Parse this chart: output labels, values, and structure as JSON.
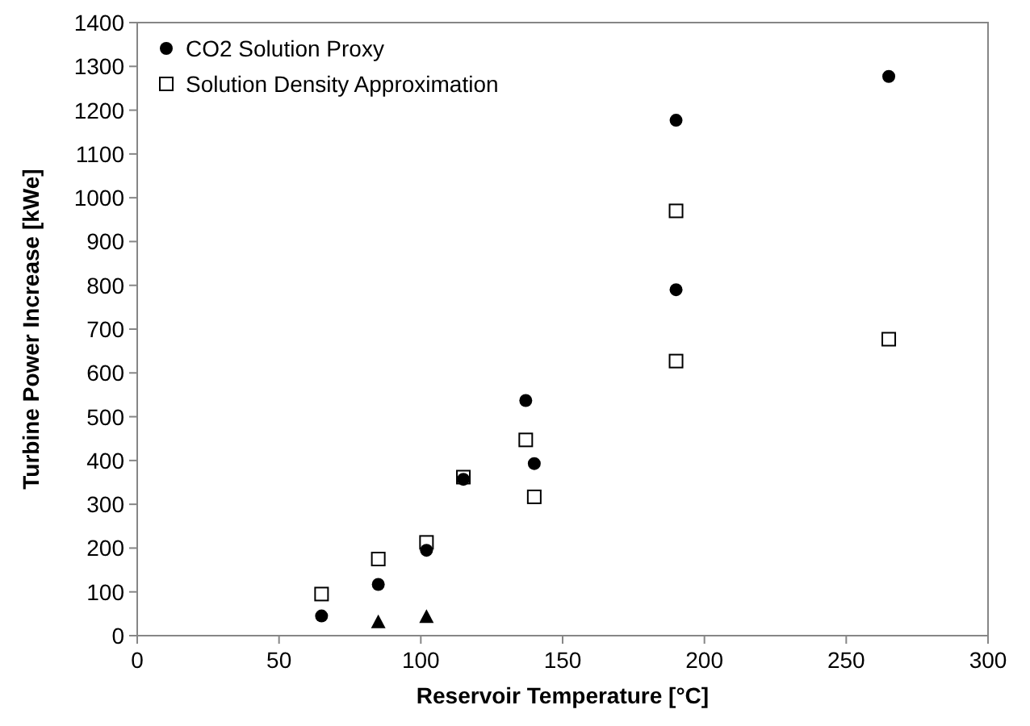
{
  "chart_data": {
    "type": "scatter",
    "xlabel": "Reservoir Temperature [°C]",
    "ylabel": "Turbine Power Increase [kWe]",
    "xlim": [
      0,
      300
    ],
    "xticks": [
      0,
      50,
      100,
      150,
      200,
      250,
      300
    ],
    "ylim": [
      0,
      1400
    ],
    "yticks": [
      0,
      100,
      200,
      300,
      400,
      500,
      600,
      700,
      800,
      900,
      1000,
      1100,
      1200,
      1300,
      1400
    ],
    "grid": false,
    "legend": "top left",
    "series": [
      {
        "name": "CO2 Solution Proxy",
        "color": "#000000",
        "marker": "circle",
        "x": [
          65,
          85,
          102,
          115,
          137,
          140,
          190,
          190,
          265
        ],
        "values": [
          45,
          117,
          195,
          357,
          537,
          393,
          1177,
          790,
          1277
        ]
      },
      {
        "name": "Solution Density Approximation",
        "color": "#000000",
        "marker": "square",
        "x": [
          65,
          85,
          102,
          115,
          137,
          140,
          190,
          190,
          265
        ],
        "values": [
          95,
          175,
          213,
          362,
          447,
          317,
          970,
          627,
          677
        ]
      },
      {
        "color": "#000000",
        "marker": "triangle",
        "x": [
          85,
          102
        ],
        "values": [
          30,
          42
        ]
      }
    ]
  }
}
